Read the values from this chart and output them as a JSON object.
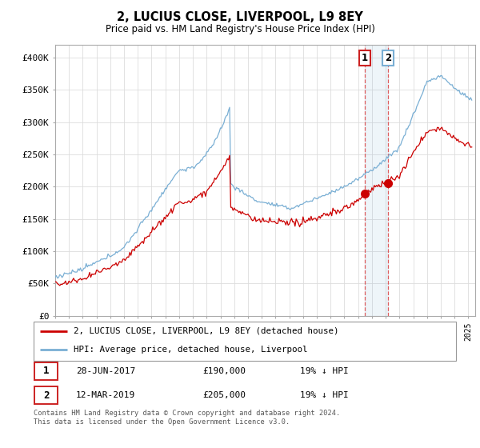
{
  "title": "2, LUCIUS CLOSE, LIVERPOOL, L9 8EY",
  "subtitle": "Price paid vs. HM Land Registry's House Price Index (HPI)",
  "hpi_label": "HPI: Average price, detached house, Liverpool",
  "property_label": "2, LUCIUS CLOSE, LIVERPOOL, L9 8EY (detached house)",
  "legend_entries": [
    {
      "num": "1",
      "date": "28-JUN-2017",
      "price": "£190,000",
      "note": "19% ↓ HPI"
    },
    {
      "num": "2",
      "date": "12-MAR-2019",
      "price": "£205,000",
      "note": "19% ↓ HPI"
    }
  ],
  "footnote": "Contains HM Land Registry data © Crown copyright and database right 2024.\nThis data is licensed under the Open Government Licence v3.0.",
  "property_color": "#cc0000",
  "hpi_color": "#7aafd4",
  "marker1_date": 2017.49,
  "marker2_date": 2019.19,
  "marker1_price": 190000,
  "marker2_price": 205000,
  "ylim": [
    0,
    420000
  ],
  "xlim": [
    1995.0,
    2025.5
  ],
  "yticks": [
    0,
    50000,
    100000,
    150000,
    200000,
    250000,
    300000,
    350000,
    400000
  ],
  "ytick_labels": [
    "£0",
    "£50K",
    "£100K",
    "£150K",
    "£200K",
    "£250K",
    "£300K",
    "£350K",
    "£400K"
  ],
  "background_color": "#ffffff",
  "grid_color": "#dddddd"
}
